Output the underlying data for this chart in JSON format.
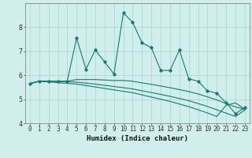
{
  "xlabel": "Humidex (Indice chaleur)",
  "background_color": "#d0eeec",
  "grid_color": "#b0d8d4",
  "line_color": "#1a7a6e",
  "x": [
    0,
    1,
    2,
    3,
    4,
    5,
    6,
    7,
    8,
    9,
    10,
    11,
    12,
    13,
    14,
    15,
    16,
    17,
    18,
    19,
    20,
    21,
    22,
    23
  ],
  "line1": [
    5.65,
    5.75,
    5.75,
    5.75,
    5.75,
    7.55,
    6.25,
    7.05,
    6.55,
    6.05,
    8.6,
    8.2,
    7.35,
    7.15,
    6.2,
    6.2,
    7.05,
    5.85,
    5.75,
    5.35,
    5.25,
    4.85,
    4.4,
    4.65
  ],
  "line2": [
    5.65,
    5.75,
    5.75,
    5.75,
    5.75,
    5.82,
    5.82,
    5.82,
    5.8,
    5.78,
    5.78,
    5.75,
    5.68,
    5.62,
    5.55,
    5.48,
    5.4,
    5.32,
    5.22,
    5.1,
    4.97,
    4.82,
    4.68,
    4.58
  ],
  "line3": [
    5.65,
    5.75,
    5.75,
    5.75,
    5.73,
    5.71,
    5.67,
    5.63,
    5.58,
    5.53,
    5.48,
    5.43,
    5.35,
    5.28,
    5.2,
    5.12,
    5.03,
    4.94,
    4.82,
    4.7,
    4.56,
    4.42,
    4.28,
    4.55
  ],
  "line4": [
    5.65,
    5.75,
    5.72,
    5.69,
    5.66,
    5.63,
    5.57,
    5.51,
    5.45,
    5.39,
    5.33,
    5.27,
    5.18,
    5.09,
    5.0,
    4.91,
    4.8,
    4.69,
    4.56,
    4.43,
    4.28,
    4.75,
    4.85,
    4.58
  ],
  "ylim": [
    4.0,
    9.0
  ],
  "xlim_min": -0.5,
  "xlim_max": 23.5,
  "yticks": [
    4,
    5,
    6,
    7,
    8
  ],
  "xticks": [
    0,
    1,
    2,
    3,
    4,
    5,
    6,
    7,
    8,
    9,
    10,
    11,
    12,
    13,
    14,
    15,
    16,
    17,
    18,
    19,
    20,
    21,
    22,
    23
  ],
  "tick_fontsize": 5.5,
  "xlabel_fontsize": 6.5
}
